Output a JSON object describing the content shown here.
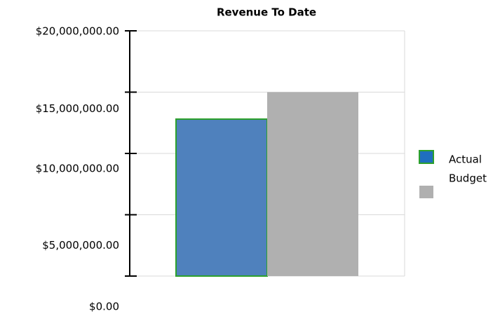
{
  "chart_data": {
    "type": "bar",
    "title": "Revenue To Date",
    "categories": [
      null
    ],
    "series": [
      {
        "name": "Actual",
        "color": "#4f81bd",
        "values": [
          12800000
        ]
      },
      {
        "name": "Budget",
        "color": "#b0b0b0",
        "values": [
          15000000
        ]
      }
    ],
    "ylim": [
      0,
      20000000
    ],
    "yticks": [
      {
        "value": 0,
        "label": "$0.00"
      },
      {
        "value": 5000000,
        "label": "$5,000,000.00"
      },
      {
        "value": 10000000,
        "label": "$10,000,000.00"
      },
      {
        "value": 15000000,
        "label": "$15,000,000.00"
      },
      {
        "value": 20000000,
        "label": "$20,000,000.00"
      }
    ],
    "grid": true,
    "legend": "right"
  }
}
